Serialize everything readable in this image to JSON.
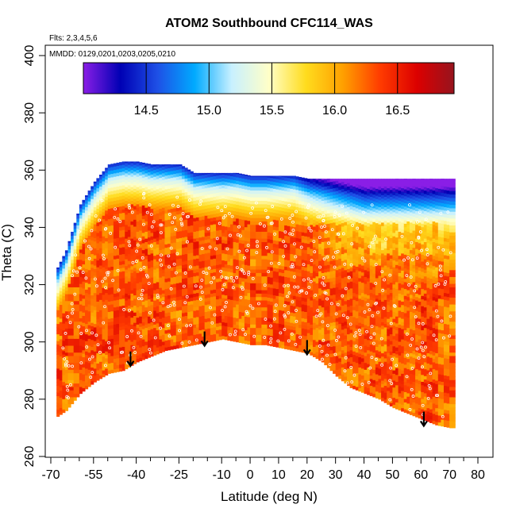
{
  "chart_data": {
    "type": "heatmap",
    "title": "ATOM2 Southbound CFC114_WAS",
    "annotations": [
      "Flts: 2,3,4,5,6",
      "MMDD: 0129,0201,0203,0205,0210"
    ],
    "xlabel": "Latitude (deg N)",
    "ylabel": "Theta (C)",
    "xlim": [
      -70,
      80
    ],
    "ylim": [
      260,
      400
    ],
    "x_ticks": [
      -70,
      -55,
      -40,
      -25,
      -10,
      0,
      10,
      20,
      30,
      40,
      50,
      60,
      70,
      80
    ],
    "x_tick_labels": [
      "-70",
      "-55",
      "-40",
      "-25",
      "-10",
      "0",
      "10",
      "20",
      "30",
      "40",
      "50",
      "60",
      "70",
      "80"
    ],
    "y_ticks": [
      260,
      280,
      300,
      320,
      340,
      360,
      380,
      400
    ],
    "y_tick_labels": [
      "260",
      "280",
      "300",
      "320",
      "340",
      "360",
      "380",
      "400"
    ],
    "colorbar": {
      "range": [
        14.0,
        16.95
      ],
      "ticks": [
        14.5,
        15.0,
        15.5,
        16.0,
        16.5
      ],
      "tick_labels": [
        "14.5",
        "15.0",
        "15.5",
        "16.0",
        "16.5"
      ],
      "colors": [
        "#8a1ee6",
        "#0000b4",
        "#1e50e6",
        "#00aaff",
        "#c8f0ff",
        "#ffffc8",
        "#ffdc1e",
        "#ffa000",
        "#ff3c00",
        "#dc0000",
        "#96141e"
      ]
    },
    "data_region": {
      "latitude": [
        -68,
        -65,
        -60,
        -55,
        -50,
        -45,
        -40,
        -35,
        -30,
        -25,
        -20,
        -15,
        -10,
        -5,
        0,
        5,
        10,
        15,
        20,
        25,
        30,
        35,
        40,
        45,
        50,
        55,
        60,
        65,
        70,
        72
      ],
      "theta_bottom": [
        274,
        276,
        282,
        286,
        289,
        290,
        293,
        295,
        297,
        298,
        299,
        300,
        301,
        300,
        299,
        299,
        298,
        297,
        296,
        293,
        288,
        284,
        282,
        280,
        277,
        275,
        273,
        271,
        270,
        270
      ],
      "theta_top": [
        326,
        332,
        348,
        356,
        362,
        363,
        363,
        362,
        362,
        362,
        359,
        359,
        359,
        359,
        358,
        358,
        358,
        358,
        357,
        357,
        357,
        357,
        357,
        357,
        357,
        357,
        357,
        357,
        357,
        357
      ]
    },
    "arrows": [
      {
        "latitude": -42,
        "theta": 290
      },
      {
        "latitude": -16,
        "theta": 297
      },
      {
        "latitude": 20,
        "theta": 294
      },
      {
        "latitude": 61,
        "theta": 269
      }
    ]
  }
}
